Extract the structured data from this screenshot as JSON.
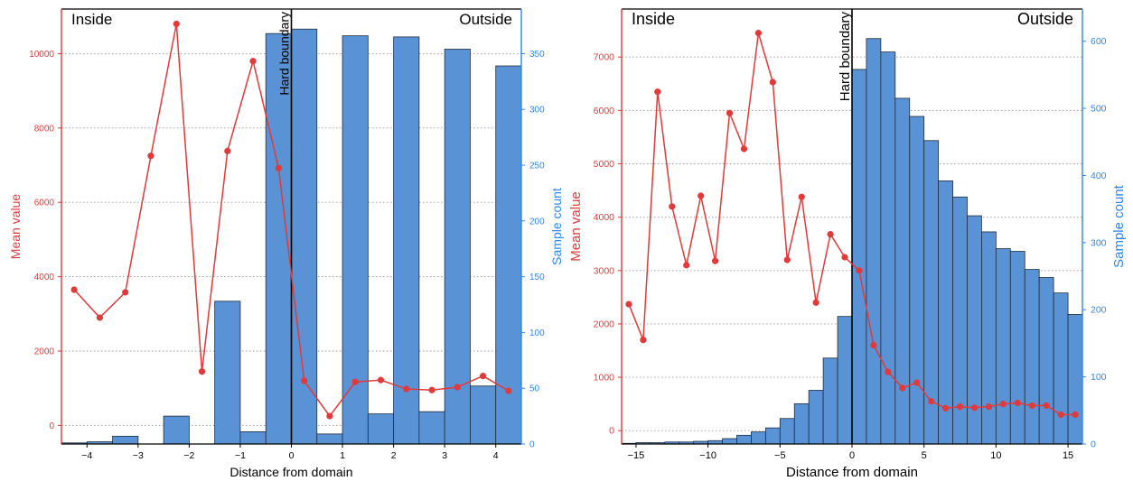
{
  "colors": {
    "line": "#e03a3a",
    "bar_fill": "#5a92d6",
    "bar_edge": "#1f2d3d",
    "right_axis": "#2f86f0",
    "grid": "#999999",
    "boundary": "#000000"
  },
  "chart_data": [
    {
      "type": "bar+line",
      "xlabel": "Distance from domain",
      "ylabel_left": "Mean value",
      "ylabel_right": "Sample count",
      "region_left": "Inside",
      "region_right": "Outside",
      "boundary_label": "Hard boundary",
      "boundary_x": 0,
      "xlim": [
        -4.5,
        4.5
      ],
      "ylim_left": [
        -500,
        11200
      ],
      "ylim_right": [
        0,
        390
      ],
      "xticks": [
        -4,
        -3,
        -2,
        -1,
        0,
        1,
        2,
        3,
        4
      ],
      "xtick_labels": [
        "−4",
        "−3",
        "−2",
        "−1",
        "0",
        "1",
        "2",
        "3",
        "4"
      ],
      "yticks_left": [
        0,
        2000,
        4000,
        6000,
        8000,
        10000
      ],
      "yticks_right": [
        0,
        50,
        100,
        150,
        200,
        250,
        300,
        350
      ],
      "grid": "horizontal dotted",
      "bars": {
        "width": 0.5,
        "x": [
          -4.25,
          -3.75,
          -3.25,
          -2.75,
          -2.25,
          -1.75,
          -1.25,
          -0.75,
          -0.25,
          0.25,
          0.75,
          1.25,
          1.75,
          2.25,
          2.75,
          3.25,
          3.75,
          4.25
        ],
        "counts": [
          1,
          2,
          7,
          0,
          25,
          0,
          128,
          11,
          368,
          372,
          9,
          366,
          27,
          365,
          29,
          354,
          52,
          339
        ]
      },
      "series": [
        {
          "x": [
            -4.25,
            -3.75,
            -3.25,
            -2.75,
            -2.25,
            -1.75,
            -1.25,
            -0.75,
            -0.25,
            0.25,
            0.75,
            1.25,
            1.75,
            2.25,
            2.75,
            3.25,
            3.75,
            4.25
          ],
          "values": [
            3650,
            2900,
            3580,
            7250,
            10800,
            1450,
            7380,
            9800,
            6920,
            1200,
            250,
            1170,
            1220,
            980,
            950,
            1030,
            1330,
            930
          ]
        }
      ]
    },
    {
      "type": "bar+line",
      "xlabel": "Distance from domain",
      "ylabel_left": "Mean value",
      "ylabel_right": "Sample count",
      "region_left": "Inside",
      "region_right": "Outside",
      "boundary_label": "Hard boundary",
      "boundary_x": 0,
      "xlim": [
        -16,
        16
      ],
      "ylim_left": [
        -250,
        7900
      ],
      "ylim_right": [
        0,
        648
      ],
      "xticks": [
        -15,
        -10,
        -5,
        0,
        5,
        10,
        15
      ],
      "xtick_labels": [
        "−15",
        "−10",
        "−5",
        "0",
        "5",
        "10",
        "15"
      ],
      "yticks_left": [
        0,
        1000,
        2000,
        3000,
        4000,
        5000,
        6000,
        7000
      ],
      "yticks_right": [
        0,
        100,
        200,
        300,
        400,
        500,
        600
      ],
      "grid": "horizontal dotted",
      "bars": {
        "width": 1,
        "x": [
          -15.5,
          -14.5,
          -13.5,
          -12.5,
          -11.5,
          -10.5,
          -9.5,
          -8.5,
          -7.5,
          -6.5,
          -5.5,
          -4.5,
          -3.5,
          -2.5,
          -1.5,
          -0.5,
          0.5,
          1.5,
          2.5,
          3.5,
          4.5,
          5.5,
          6.5,
          7.5,
          8.5,
          9.5,
          10.5,
          11.5,
          12.5,
          13.5,
          14.5,
          15.5
        ],
        "counts": [
          1,
          2,
          2,
          3,
          3,
          4,
          5,
          8,
          13,
          18,
          24,
          38,
          60,
          80,
          128,
          190,
          558,
          604,
          584,
          515,
          488,
          452,
          392,
          368,
          340,
          316,
          291,
          287,
          260,
          248,
          225,
          193
        ]
      },
      "series": [
        {
          "x": [
            -15.5,
            -14.5,
            -13.5,
            -12.5,
            -11.5,
            -10.5,
            -9.5,
            -8.5,
            -7.5,
            -6.5,
            -5.5,
            -4.5,
            -3.5,
            -2.5,
            -1.5,
            -0.5,
            0.5,
            1.5,
            2.5,
            3.5,
            4.5,
            5.5,
            6.5,
            7.5,
            8.5,
            9.5,
            10.5,
            11.5,
            12.5,
            13.5,
            14.5,
            15.5
          ],
          "values": [
            2370,
            1700,
            6350,
            4200,
            3100,
            4400,
            3180,
            5950,
            5280,
            7450,
            6530,
            3200,
            4380,
            2400,
            3680,
            3250,
            3000,
            1600,
            1100,
            800,
            900,
            550,
            420,
            450,
            430,
            450,
            500,
            520,
            470,
            470,
            300,
            300
          ]
        }
      ]
    }
  ]
}
